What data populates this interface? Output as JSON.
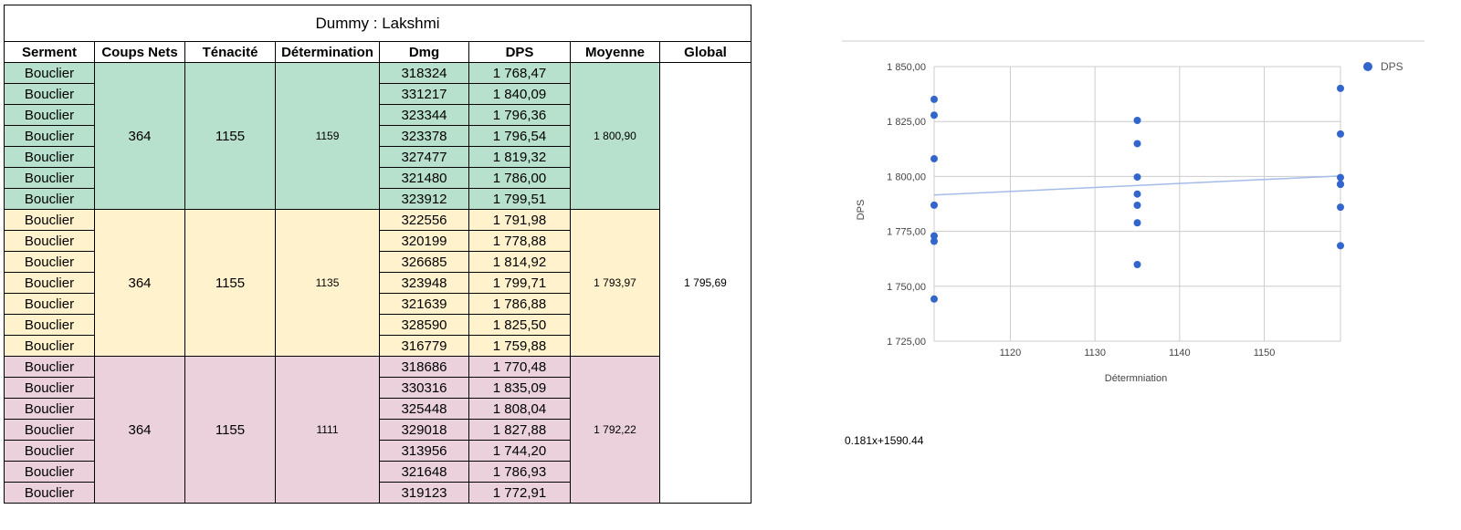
{
  "table": {
    "title": "Dummy : Lakshmi",
    "headers": [
      "Serment",
      "Coups Nets",
      "Ténacité",
      "Détermination",
      "Dmg",
      "DPS",
      "Moyenne",
      "Global"
    ],
    "global": "1 795,69",
    "groups": [
      {
        "color": "#b7e1cd",
        "coups_nets": "364",
        "tenacite": "1155",
        "determination": "1159",
        "moyenne": "1 800,90",
        "rows": [
          {
            "serment": "Bouclier",
            "dmg": "318324",
            "dps": "1 768,47"
          },
          {
            "serment": "Bouclier",
            "dmg": "331217",
            "dps": "1 840,09"
          },
          {
            "serment": "Bouclier",
            "dmg": "323344",
            "dps": "1 796,36"
          },
          {
            "serment": "Bouclier",
            "dmg": "323378",
            "dps": "1 796,54"
          },
          {
            "serment": "Bouclier",
            "dmg": "327477",
            "dps": "1 819,32"
          },
          {
            "serment": "Bouclier",
            "dmg": "321480",
            "dps": "1 786,00"
          },
          {
            "serment": "Bouclier",
            "dmg": "323912",
            "dps": "1 799,51"
          }
        ]
      },
      {
        "color": "#fff2cc",
        "coups_nets": "364",
        "tenacite": "1155",
        "determination": "1135",
        "moyenne": "1 793,97",
        "rows": [
          {
            "serment": "Bouclier",
            "dmg": "322556",
            "dps": "1 791,98"
          },
          {
            "serment": "Bouclier",
            "dmg": "320199",
            "dps": "1 778,88"
          },
          {
            "serment": "Bouclier",
            "dmg": "326685",
            "dps": "1 814,92"
          },
          {
            "serment": "Bouclier",
            "dmg": "323948",
            "dps": "1 799,71"
          },
          {
            "serment": "Bouclier",
            "dmg": "321639",
            "dps": "1 786,88"
          },
          {
            "serment": "Bouclier",
            "dmg": "328590",
            "dps": "1 825,50"
          },
          {
            "serment": "Bouclier",
            "dmg": "316779",
            "dps": "1 759,88"
          }
        ]
      },
      {
        "color": "#ead1dc",
        "coups_nets": "364",
        "tenacite": "1155",
        "determination": "1111",
        "moyenne": "1 792,22",
        "rows": [
          {
            "serment": "Bouclier",
            "dmg": "318686",
            "dps": "1 770,48"
          },
          {
            "serment": "Bouclier",
            "dmg": "330316",
            "dps": "1 835,09"
          },
          {
            "serment": "Bouclier",
            "dmg": "325448",
            "dps": "1 808,04"
          },
          {
            "serment": "Bouclier",
            "dmg": "329018",
            "dps": "1 827,88"
          },
          {
            "serment": "Bouclier",
            "dmg": "313956",
            "dps": "1 744,20"
          },
          {
            "serment": "Bouclier",
            "dmg": "321648",
            "dps": "1 786,93"
          },
          {
            "serment": "Bouclier",
            "dmg": "319123",
            "dps": "1 772,91"
          }
        ]
      }
    ]
  },
  "chart_data": {
    "type": "scatter",
    "xlabel": "Détermniation",
    "ylabel": "DPS",
    "xlim": [
      1111,
      1159
    ],
    "ylim": [
      1725,
      1850
    ],
    "x_ticks": [
      1120,
      1130,
      1140,
      1150
    ],
    "x_tick_labels": [
      "1120",
      "1130",
      "1140",
      "1150"
    ],
    "y_ticks": [
      1725,
      1750,
      1775,
      1800,
      1825,
      1850
    ],
    "y_tick_labels": [
      "1 725,00",
      "1 750,00",
      "1 775,00",
      "1 800,00",
      "1 825,00",
      "1 850,00"
    ],
    "grid": true,
    "legend_position": "top-right",
    "marker_color": "#3366cc",
    "trendline_color": "#a4bce8",
    "trendline": {
      "slope": 0.181,
      "intercept": 1590.44
    },
    "equation_label": "0.181x+1590.44",
    "series": [
      {
        "name": "DPS",
        "points": [
          [
            1159,
            1768.47
          ],
          [
            1159,
            1840.09
          ],
          [
            1159,
            1796.36
          ],
          [
            1159,
            1796.54
          ],
          [
            1159,
            1819.32
          ],
          [
            1159,
            1786.0
          ],
          [
            1159,
            1799.51
          ],
          [
            1135,
            1791.98
          ],
          [
            1135,
            1778.88
          ],
          [
            1135,
            1814.92
          ],
          [
            1135,
            1799.71
          ],
          [
            1135,
            1786.88
          ],
          [
            1135,
            1825.5
          ],
          [
            1135,
            1759.88
          ],
          [
            1111,
            1770.48
          ],
          [
            1111,
            1835.09
          ],
          [
            1111,
            1808.04
          ],
          [
            1111,
            1827.88
          ],
          [
            1111,
            1744.2
          ],
          [
            1111,
            1786.93
          ],
          [
            1111,
            1772.91
          ]
        ]
      }
    ]
  }
}
